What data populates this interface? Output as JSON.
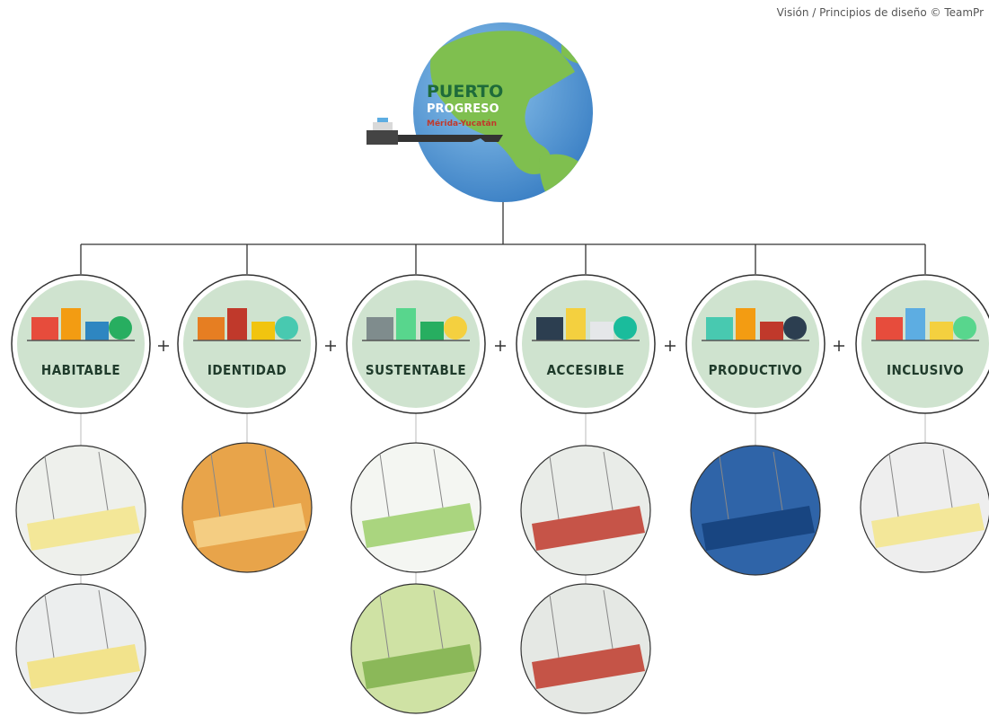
{
  "header": {
    "credit": "Visión / Principios de diseño © TeamPr"
  },
  "globe": {
    "title": "PUERTO",
    "subtitle": "PROGRESO",
    "location": "Mérida-Yucatán"
  },
  "principles": [
    {
      "label": "HABITABLE"
    },
    {
      "label": "IDENTIDAD"
    },
    {
      "label": "SUSTENTABLE"
    },
    {
      "label": "ACCESIBLE"
    },
    {
      "label": "PRODUCTIVO"
    },
    {
      "label": "INCLUSIVO"
    }
  ]
}
